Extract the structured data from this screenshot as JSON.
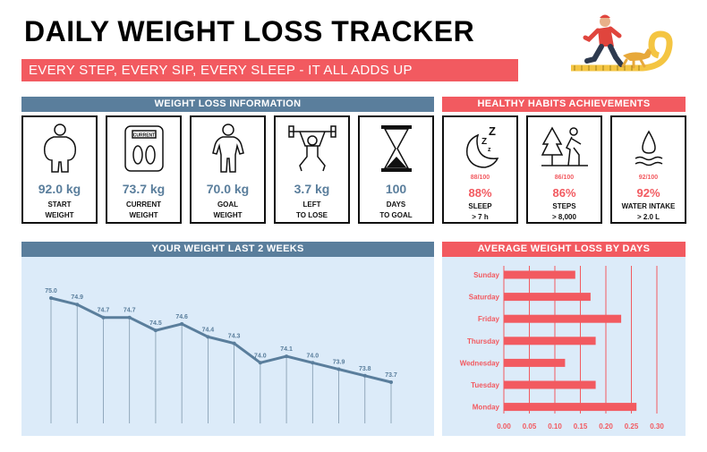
{
  "header": {
    "title": "DAILY WEIGHT LOSS TRACKER",
    "tagline": "EVERY STEP, EVERY SIP, EVERY SLEEP - IT ALL ADDS UP"
  },
  "colors": {
    "accent_red": "#f25a60",
    "accent_blue": "#5a7e9c",
    "panel_bg": "#dcebf9"
  },
  "weight_section": {
    "title": "WEIGHT LOSS INFORMATION",
    "cards": [
      {
        "icon": "body-outline-icon",
        "value": "92.0 kg",
        "line1": "START",
        "line2": "WEIGHT"
      },
      {
        "icon": "scale-icon",
        "value": "73.7 kg",
        "line1": "CURRENT",
        "line2": "WEIGHT",
        "icon_text": "CURRENT"
      },
      {
        "icon": "fit-body-icon",
        "value": "70.0 kg",
        "line1": "GOAL",
        "line2": "WEIGHT"
      },
      {
        "icon": "weightlifter-icon",
        "value": "3.7 kg",
        "line1": "LEFT",
        "line2": "TO LOSE"
      },
      {
        "icon": "hourglass-icon",
        "value": "100",
        "line1": "DAYS",
        "line2": "TO GOAL"
      }
    ]
  },
  "habits_section": {
    "title": "HEALTHY HABITS ACHIEVEMENTS",
    "cards": [
      {
        "icon": "moon-sleep-icon",
        "fraction": "88/100",
        "percent": "88%",
        "line1": "SLEEP",
        "line2": "> 7 h"
      },
      {
        "icon": "walking-icon",
        "fraction": "86/100",
        "percent": "86%",
        "line1": "STEPS",
        "line2": "> 8,000"
      },
      {
        "icon": "water-drop-icon",
        "fraction": "92/100",
        "percent": "92%",
        "line1": "WATER INTAKE",
        "line2": "> 2.0 L"
      }
    ]
  },
  "chart_data": [
    {
      "type": "line",
      "title": "YOUR WEIGHT LAST 2 WEEKS",
      "values": [
        75.0,
        74.9,
        74.7,
        74.7,
        74.5,
        74.6,
        74.4,
        74.3,
        74.0,
        74.1,
        74.0,
        73.9,
        73.8,
        73.7
      ],
      "data_labels": [
        "75.0",
        "74.9",
        "74.7",
        "74.7",
        "74.5",
        "74.6",
        "74.4",
        "74.3",
        "74.0",
        "74.1",
        "74.0",
        "73.9",
        "73.8",
        "73.7"
      ],
      "grid": false,
      "color": "#5a7e9c"
    },
    {
      "type": "bar",
      "orientation": "horizontal",
      "title": "AVERAGE WEIGHT LOSS BY DAYS",
      "categories": [
        "Sunday",
        "Saturday",
        "Friday",
        "Thursday",
        "Wednesday",
        "Tuesday",
        "Monday"
      ],
      "values": [
        0.14,
        0.17,
        0.23,
        0.18,
        0.12,
        0.18,
        0.26
      ],
      "xticks": [
        "0.00",
        "0.05",
        "0.10",
        "0.15",
        "0.20",
        "0.25",
        "0.30"
      ],
      "xlim": [
        0,
        0.3
      ],
      "grid": true,
      "color": "#f25a60"
    }
  ]
}
